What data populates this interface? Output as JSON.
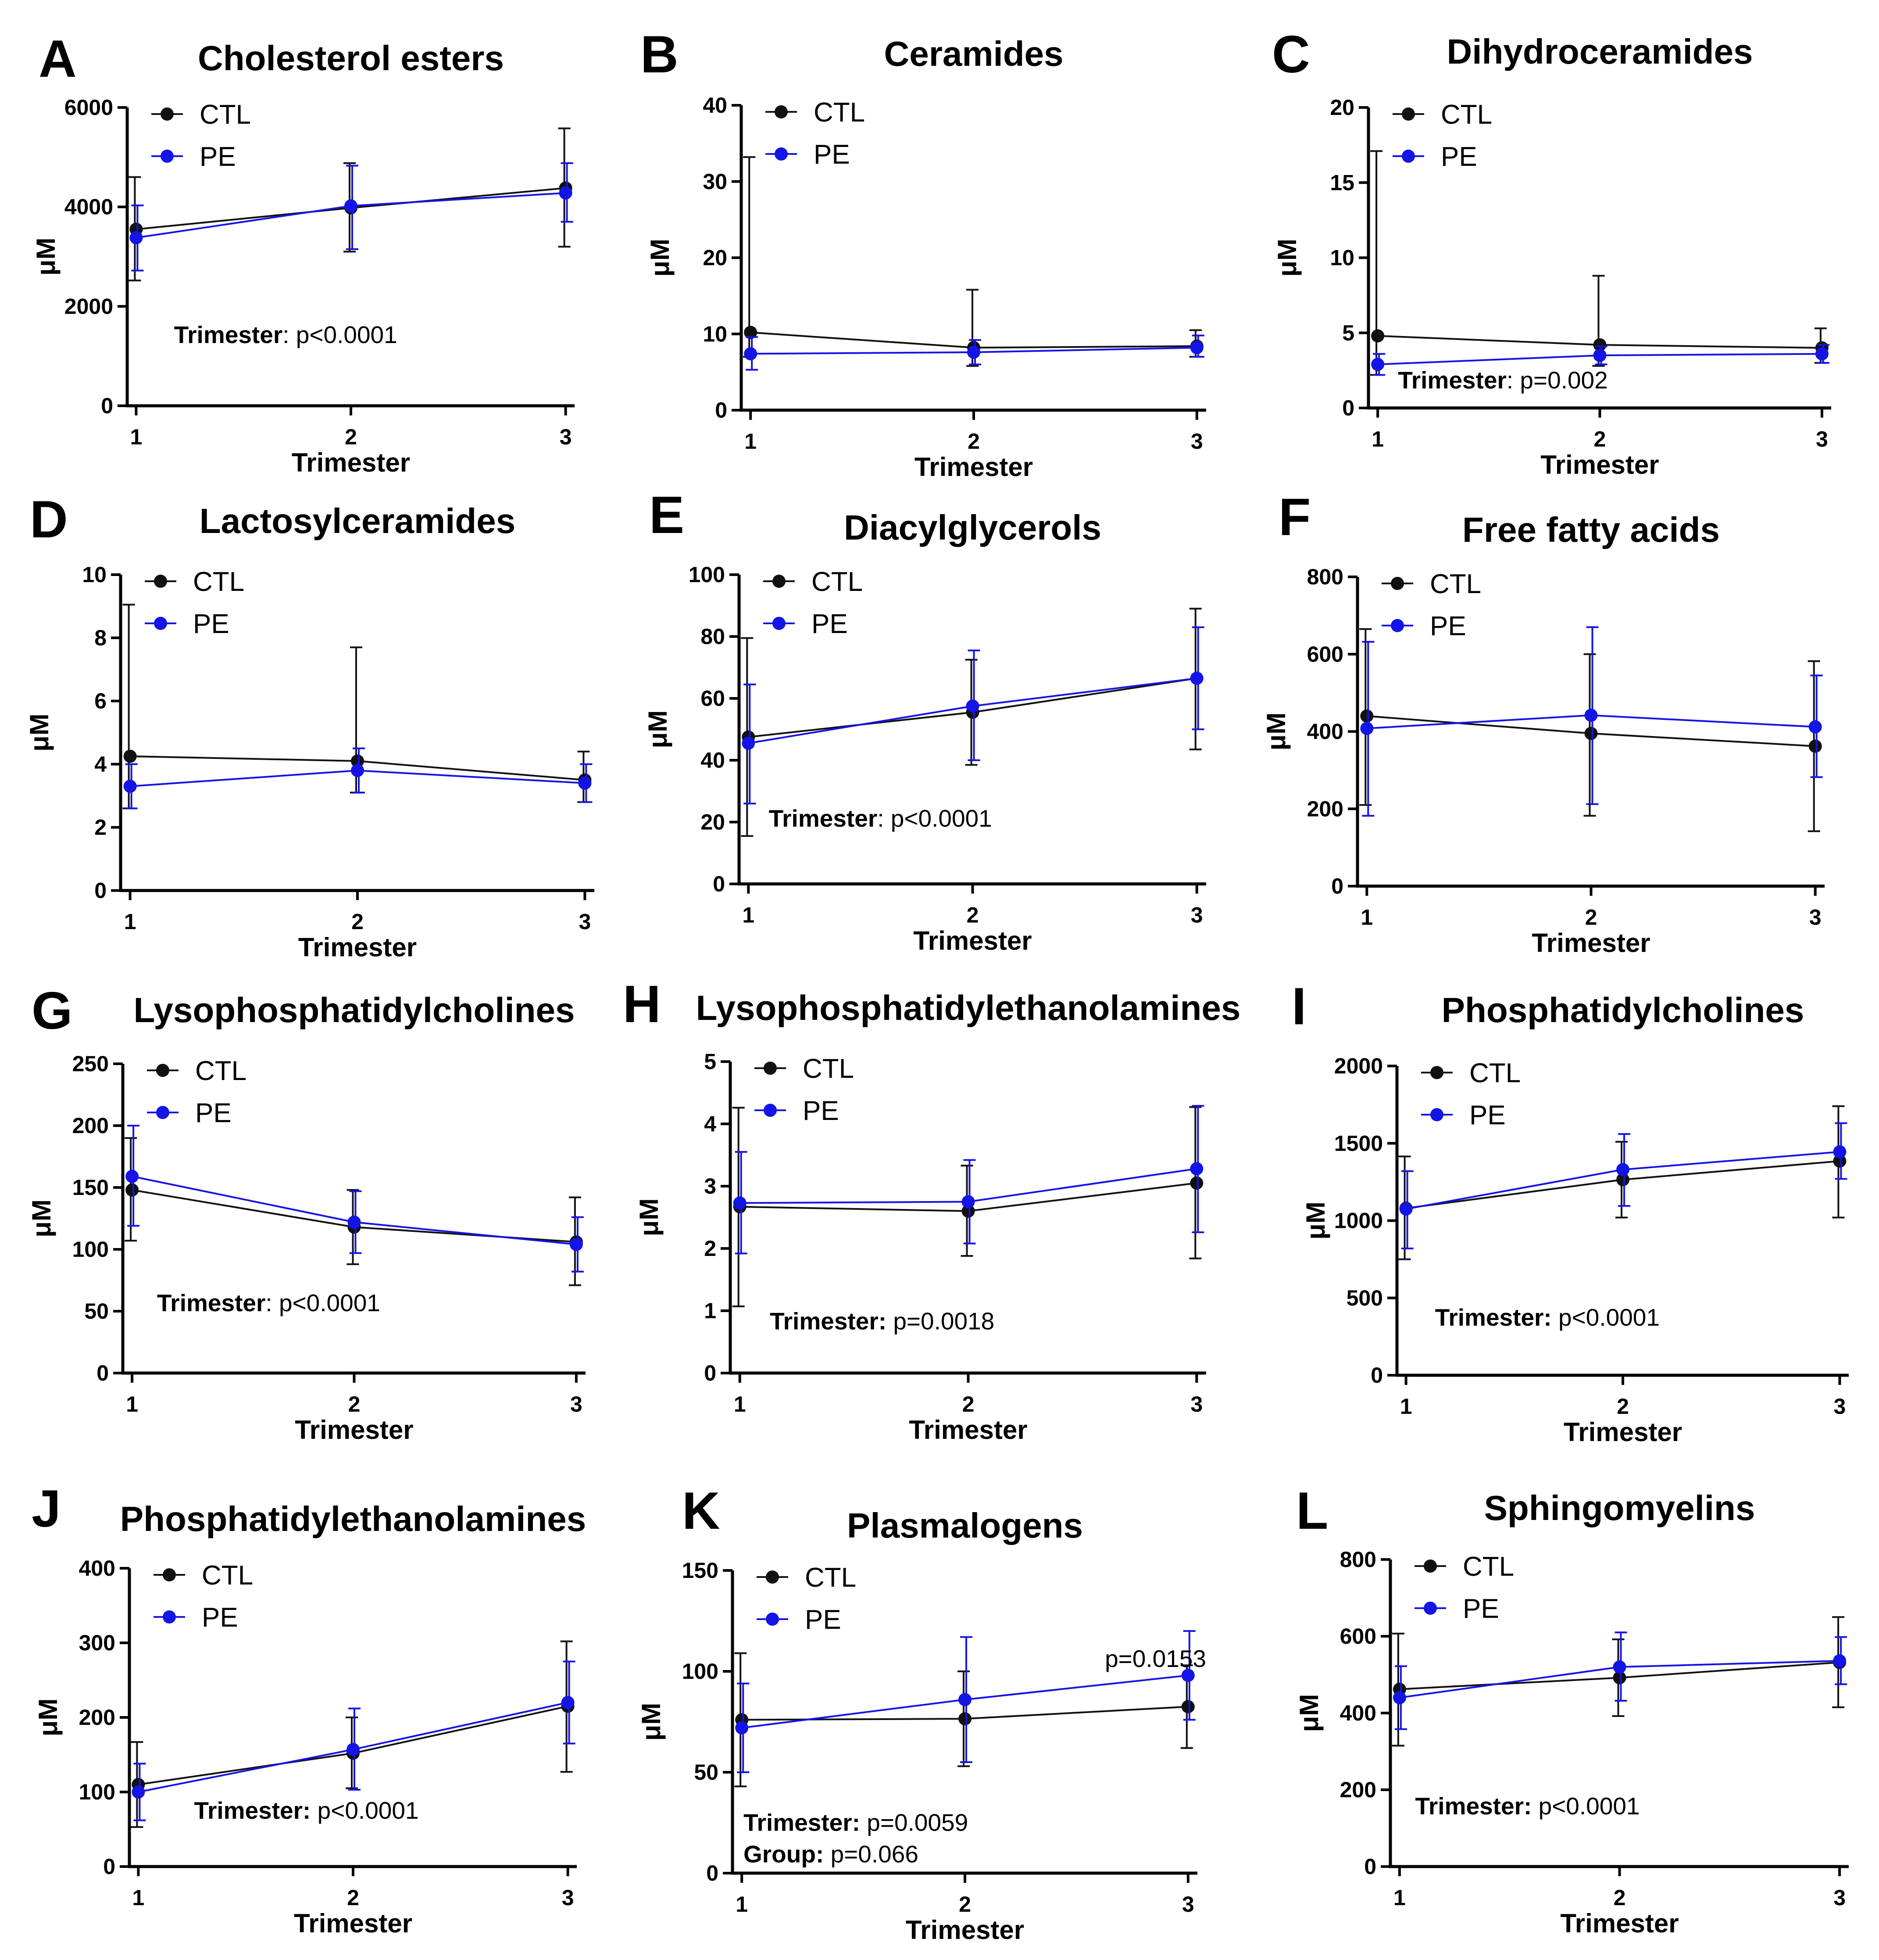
{
  "colors": {
    "CTL": "#111111",
    "PE": "#1414e6"
  },
  "chart_data": [
    {
      "type": "line",
      "letter": "A",
      "title": "Cholesterol esters",
      "xlabel": "Trimester",
      "ylabel": "μM",
      "x": [
        1,
        2,
        3
      ],
      "ylim": [
        0,
        6000
      ],
      "yticks": [
        0,
        2000,
        4000,
        6000
      ],
      "legend": [
        "CTL",
        "PE"
      ],
      "series": [
        {
          "name": "CTL",
          "values": [
            3550,
            3980,
            4380
          ],
          "err_low": [
            2520,
            3100,
            3200
          ],
          "err_high": [
            4600,
            4880,
            5580
          ]
        },
        {
          "name": "PE",
          "values": [
            3380,
            4020,
            4280
          ],
          "err_low": [
            2720,
            3150,
            3700
          ],
          "err_high": [
            4030,
            4830,
            4880
          ]
        }
      ],
      "annotations": [
        {
          "bold": "Trimester",
          "text": ": p<0.0001"
        }
      ]
    },
    {
      "type": "line",
      "letter": "B",
      "title": "Ceramides",
      "xlabel": "Trimester",
      "ylabel": "μM",
      "x": [
        1,
        2,
        3
      ],
      "ylim": [
        0,
        40
      ],
      "yticks": [
        0,
        10,
        20,
        30,
        40
      ],
      "legend": [
        "CTL",
        "PE"
      ],
      "series": [
        {
          "name": "CTL",
          "values": [
            10.2,
            8.2,
            8.4
          ],
          "err_low": [
            7.0,
            5.8,
            7.0
          ],
          "err_high": [
            33.2,
            15.8,
            10.5
          ]
        },
        {
          "name": "PE",
          "values": [
            7.4,
            7.6,
            8.2
          ],
          "err_low": [
            5.3,
            6.0,
            7.0
          ],
          "err_high": [
            9.6,
            9.2,
            9.8
          ]
        }
      ],
      "annotations": []
    },
    {
      "type": "line",
      "letter": "C",
      "title": "Dihydroceramides",
      "xlabel": "Trimester",
      "ylabel": "μM",
      "x": [
        1,
        2,
        3
      ],
      "ylim": [
        0,
        20
      ],
      "yticks": [
        0,
        5,
        10,
        15,
        20
      ],
      "legend": [
        "CTL",
        "PE"
      ],
      "series": [
        {
          "name": "CTL",
          "values": [
            4.8,
            4.2,
            4.0
          ],
          "err_low": [
            2.2,
            2.8,
            3.0
          ],
          "err_high": [
            17.1,
            8.8,
            5.3
          ]
        },
        {
          "name": "PE",
          "values": [
            2.9,
            3.5,
            3.6
          ],
          "err_low": [
            2.2,
            2.9,
            3.0
          ],
          "err_high": [
            3.6,
            4.1,
            4.2
          ]
        }
      ],
      "annotations": [
        {
          "bold": "Trimester",
          "text": ": p=0.002"
        }
      ]
    },
    {
      "type": "line",
      "letter": "D",
      "title": "Lactosylceramides",
      "xlabel": "Trimester",
      "ylabel": "μM",
      "x": [
        1,
        2,
        3
      ],
      "ylim": [
        0,
        10
      ],
      "yticks": [
        0,
        2,
        4,
        6,
        8,
        10
      ],
      "legend": [
        "CTL",
        "PE"
      ],
      "series": [
        {
          "name": "CTL",
          "values": [
            4.25,
            4.1,
            3.5
          ],
          "err_low": [
            2.6,
            3.1,
            2.8
          ],
          "err_high": [
            9.05,
            7.7,
            4.4
          ]
        },
        {
          "name": "PE",
          "values": [
            3.3,
            3.8,
            3.4
          ],
          "err_low": [
            2.6,
            3.1,
            2.8
          ],
          "err_high": [
            4.0,
            4.5,
            4.0
          ]
        }
      ],
      "annotations": []
    },
    {
      "type": "line",
      "letter": "E",
      "title": "Diacylglycerols",
      "xlabel": "Trimester",
      "ylabel": "μM",
      "x": [
        1,
        2,
        3
      ],
      "ylim": [
        0,
        100
      ],
      "yticks": [
        0,
        20,
        40,
        60,
        80,
        100
      ],
      "legend": [
        "CTL",
        "PE"
      ],
      "series": [
        {
          "name": "CTL",
          "values": [
            47.5,
            55.5,
            66.5
          ],
          "err_low": [
            15.5,
            38.5,
            43.5
          ],
          "err_high": [
            79.5,
            72.5,
            89.0
          ]
        },
        {
          "name": "PE",
          "values": [
            45.5,
            57.5,
            66.5
          ],
          "err_low": [
            26.0,
            40.0,
            50.0
          ],
          "err_high": [
            64.5,
            75.5,
            83.0
          ]
        }
      ],
      "annotations": [
        {
          "bold": "Trimester",
          "text": ": p<0.0001"
        }
      ]
    },
    {
      "type": "line",
      "letter": "F",
      "title": "Free fatty acids",
      "xlabel": "Trimester",
      "ylabel": "μM",
      "x": [
        1,
        2,
        3
      ],
      "ylim": [
        0,
        800
      ],
      "yticks": [
        0,
        200,
        400,
        600,
        800
      ],
      "legend": [
        "CTL",
        "PE"
      ],
      "series": [
        {
          "name": "CTL",
          "values": [
            440,
            395,
            362
          ],
          "err_low": [
            210,
            182,
            142
          ],
          "err_high": [
            665,
            600,
            582
          ]
        },
        {
          "name": "PE",
          "values": [
            408,
            442,
            412
          ],
          "err_low": [
            182,
            212,
            282
          ],
          "err_high": [
            632,
            670,
            545
          ]
        }
      ],
      "annotations": []
    },
    {
      "type": "line",
      "letter": "G",
      "title": "Lysophosphatidylcholines",
      "xlabel": "Trimester",
      "ylabel": "μM",
      "x": [
        1,
        2,
        3
      ],
      "ylim": [
        0,
        250
      ],
      "yticks": [
        0,
        50,
        100,
        150,
        200,
        250
      ],
      "legend": [
        "CTL",
        "PE"
      ],
      "series": [
        {
          "name": "CTL",
          "values": [
            148,
            118,
            106
          ],
          "err_low": [
            107,
            88,
            71
          ],
          "err_high": [
            190,
            148,
            142
          ]
        },
        {
          "name": "PE",
          "values": [
            159,
            122,
            104
          ],
          "err_low": [
            119,
            97,
            82
          ],
          "err_high": [
            200,
            147,
            126
          ]
        }
      ],
      "annotations": [
        {
          "bold": "Trimester",
          "text": ": p<0.0001"
        }
      ]
    },
    {
      "type": "line",
      "letter": "H",
      "title": "Lysophosphatidylethanolamines",
      "xlabel": "Trimester",
      "ylabel": "μM",
      "x": [
        1,
        2,
        3
      ],
      "ylim": [
        0,
        5
      ],
      "yticks": [
        0,
        1,
        2,
        3,
        4,
        5
      ],
      "legend": [
        "CTL",
        "PE"
      ],
      "series": [
        {
          "name": "CTL",
          "values": [
            2.67,
            2.6,
            3.05
          ],
          "err_low": [
            1.07,
            1.88,
            1.84
          ],
          "err_high": [
            4.26,
            3.33,
            4.27
          ]
        },
        {
          "name": "PE",
          "values": [
            2.73,
            2.75,
            3.28
          ],
          "err_low": [
            1.92,
            2.08,
            2.26
          ],
          "err_high": [
            3.55,
            3.42,
            4.29
          ]
        }
      ],
      "annotations": [
        {
          "bold": "Trimester:",
          "text": " p=0.0018"
        }
      ]
    },
    {
      "type": "line",
      "letter": "I",
      "title": "Phosphatidylcholines",
      "xlabel": "Trimester",
      "ylabel": "μM",
      "x": [
        1,
        2,
        3
      ],
      "ylim": [
        0,
        2000
      ],
      "yticks": [
        0,
        500,
        1000,
        1500,
        2000
      ],
      "legend": [
        "CTL",
        "PE"
      ],
      "series": [
        {
          "name": "CTL",
          "values": [
            1080,
            1265,
            1385
          ],
          "err_low": [
            750,
            1020,
            1020
          ],
          "err_high": [
            1415,
            1510,
            1740
          ]
        },
        {
          "name": "PE",
          "values": [
            1075,
            1330,
            1445
          ],
          "err_low": [
            820,
            1095,
            1270
          ],
          "err_high": [
            1320,
            1560,
            1630
          ]
        }
      ],
      "annotations": [
        {
          "bold": "Trimester:",
          "text": " p<0.0001"
        }
      ]
    },
    {
      "type": "line",
      "letter": "J",
      "title": "Phosphatidylethanolamines",
      "xlabel": "Trimester",
      "ylabel": "μM",
      "x": [
        1,
        2,
        3
      ],
      "ylim": [
        0,
        400
      ],
      "yticks": [
        0,
        100,
        200,
        300,
        400
      ],
      "legend": [
        "CTL",
        "PE"
      ],
      "series": [
        {
          "name": "CTL",
          "values": [
            110,
            152,
            215
          ],
          "err_low": [
            53,
            105,
            127
          ],
          "err_high": [
            167,
            200,
            302
          ]
        },
        {
          "name": "PE",
          "values": [
            100,
            157,
            220
          ],
          "err_low": [
            62,
            103,
            165
          ],
          "err_high": [
            138,
            212,
            275
          ]
        }
      ],
      "annotations": [
        {
          "bold": "Trimester:",
          "text": " p<0.0001"
        }
      ]
    },
    {
      "type": "line",
      "letter": "K",
      "title": "Plasmalogens",
      "xlabel": "Trimester",
      "ylabel": "μM",
      "x": [
        1,
        2,
        3
      ],
      "ylim": [
        0,
        150
      ],
      "yticks": [
        0,
        50,
        100,
        150
      ],
      "legend": [
        "CTL",
        "PE"
      ],
      "series": [
        {
          "name": "CTL",
          "values": [
            76,
            76.5,
            82.5
          ],
          "err_low": [
            43,
            53,
            62
          ],
          "err_high": [
            109,
            100,
            103
          ]
        },
        {
          "name": "PE",
          "values": [
            72,
            86,
            98
          ],
          "err_low": [
            50,
            55,
            76
          ],
          "err_high": [
            94,
            117,
            120
          ]
        }
      ],
      "annotations": [
        {
          "bold": "Trimester:",
          "text": " p=0.0059"
        },
        {
          "bold": "Group:",
          "text": " p=0.066"
        }
      ],
      "corner_note": "p=0.0153"
    },
    {
      "type": "line",
      "letter": "L",
      "title": "Sphingomyelins",
      "xlabel": "Trimester",
      "ylabel": "μM",
      "x": [
        1,
        2,
        3
      ],
      "ylim": [
        0,
        800
      ],
      "yticks": [
        0,
        200,
        400,
        600,
        800
      ],
      "legend": [
        "CTL",
        "PE"
      ],
      "series": [
        {
          "name": "CTL",
          "values": [
            462,
            492,
            532
          ],
          "err_low": [
            315,
            392,
            415
          ],
          "err_high": [
            607,
            592,
            650
          ]
        },
        {
          "name": "PE",
          "values": [
            440,
            520,
            536
          ],
          "err_low": [
            358,
            432,
            475
          ],
          "err_high": [
            522,
            610,
            598
          ]
        }
      ],
      "annotations": [
        {
          "bold": "Trimester:",
          "text": " p<0.0001"
        }
      ]
    }
  ]
}
